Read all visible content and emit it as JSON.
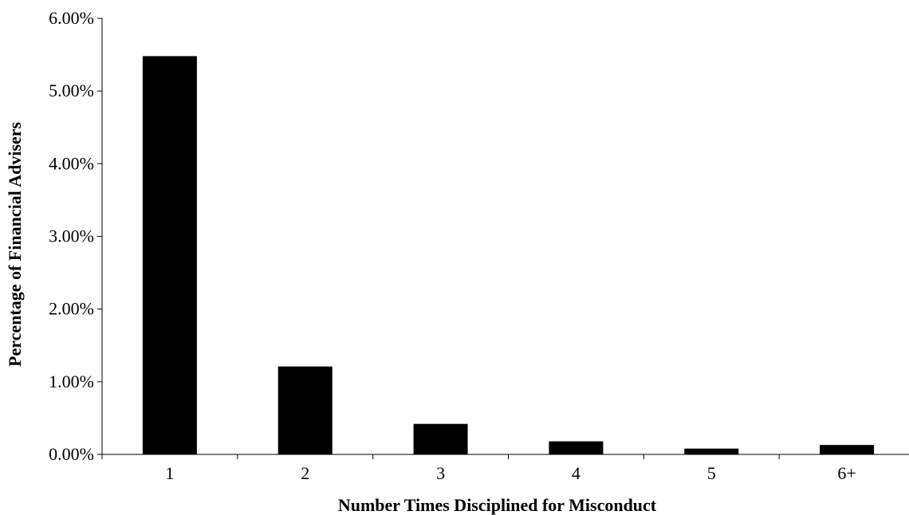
{
  "chart_data": {
    "type": "bar",
    "title": "",
    "xlabel": "Number Times Disciplined for Misconduct",
    "ylabel": "Percentage of Financial Advisers",
    "categories": [
      "1",
      "2",
      "3",
      "4",
      "5",
      "6+"
    ],
    "values": [
      5.48,
      1.21,
      0.42,
      0.18,
      0.08,
      0.13
    ],
    "value_unit": "percent",
    "ylim": [
      0,
      6
    ],
    "yticks": [
      0,
      1,
      2,
      3,
      4,
      5,
      6
    ],
    "ytick_labels": [
      "0.00%",
      "1.00%",
      "2.00%",
      "3.00%",
      "4.00%",
      "5.00%",
      "6.00%"
    ],
    "grid": false,
    "legend": "none",
    "bar_color": "#000000"
  }
}
